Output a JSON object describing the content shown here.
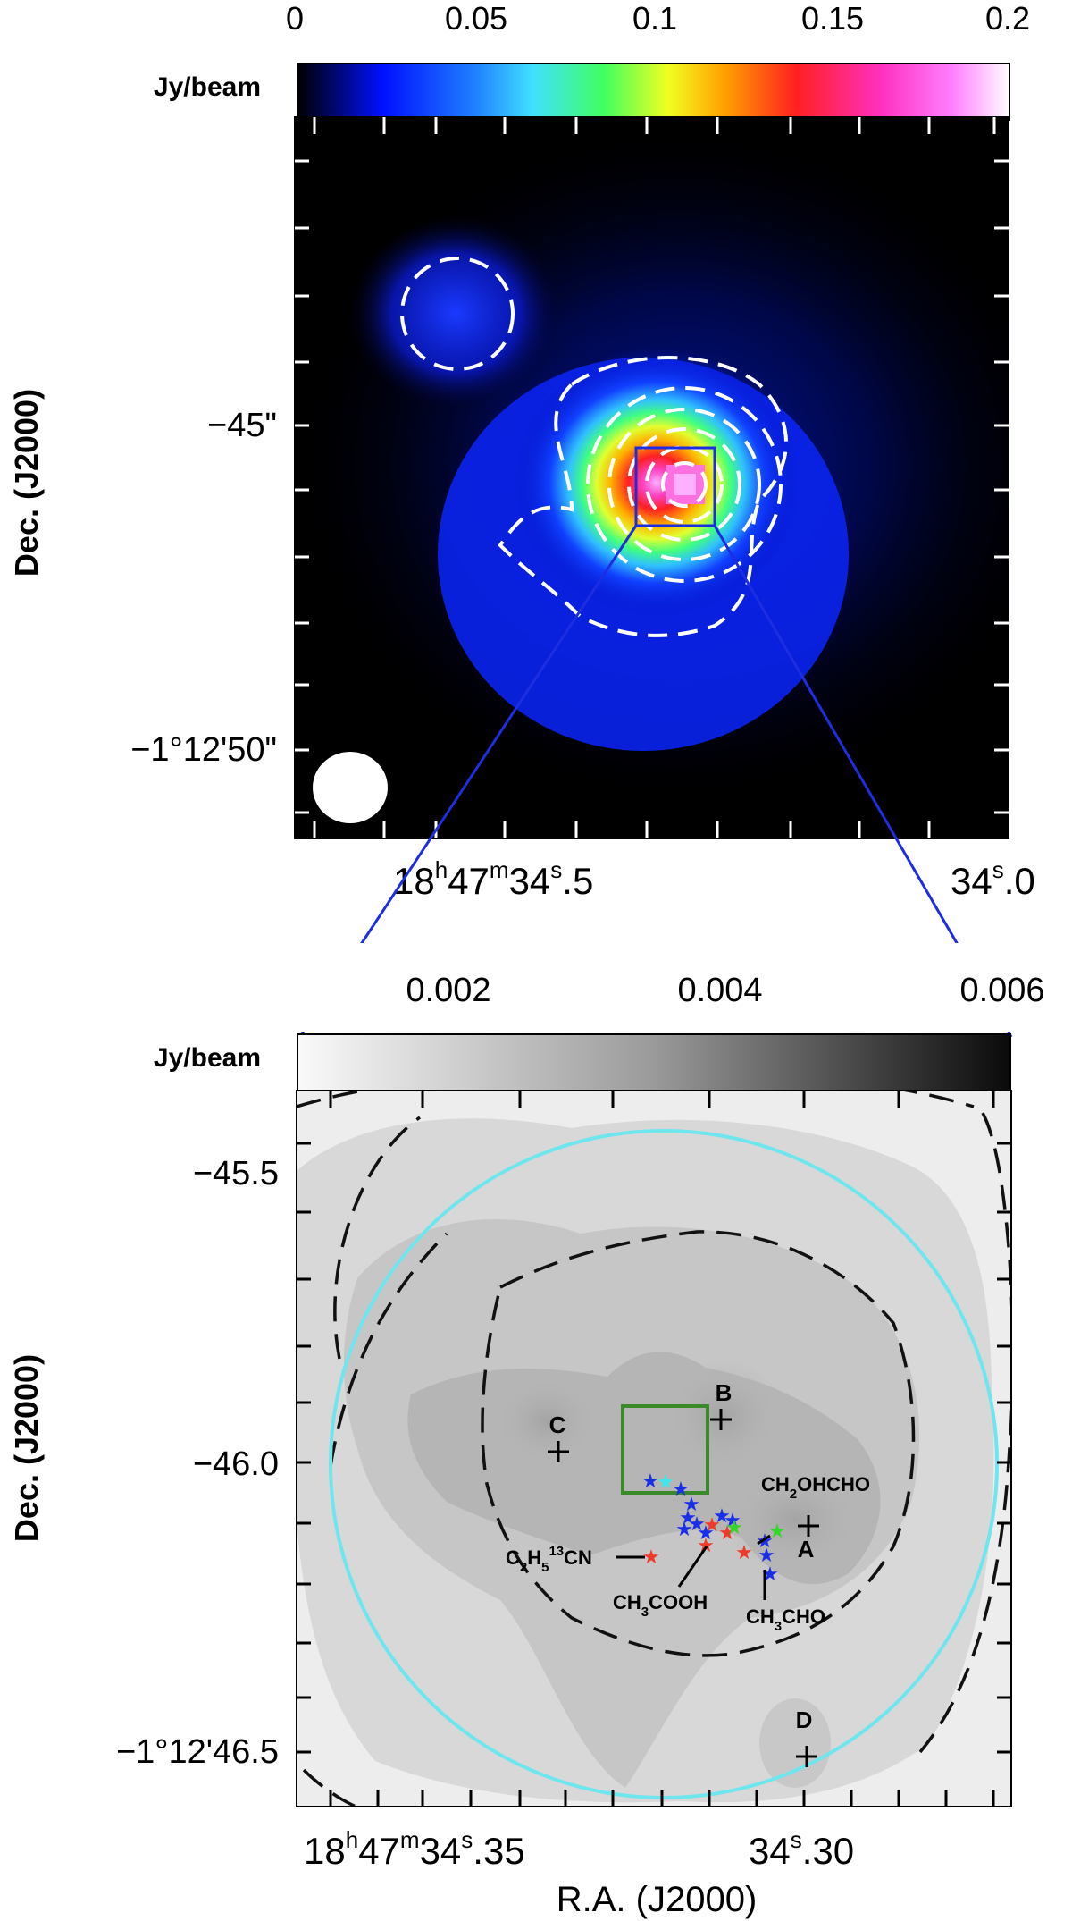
{
  "chart_data": [
    {
      "type": "heatmap",
      "panel": "top",
      "colorbar": {
        "unit": "Jy/beam",
        "ticks": [
          "0",
          "0.05",
          "0.1",
          "0.15",
          "0.2"
        ],
        "range": [
          0,
          0.2
        ],
        "colormap": "rainbow"
      },
      "ylabel": "Dec. (J2000)",
      "y_tick_labels": [
        "−45\"",
        "−1°12'50\""
      ],
      "x_tick_labels": [
        {
          "h": "18",
          "m": "47",
          "s": "34",
          "frac": ".5"
        },
        {
          "s": "34",
          "frac": ".0"
        }
      ],
      "features": [
        "dashed white contours",
        "peak emission source",
        "zoom box",
        "beam ellipse"
      ]
    },
    {
      "type": "heatmap",
      "panel": "bottom",
      "colorbar": {
        "unit": "Jy/beam",
        "ticks": [
          "0.002",
          "0.004",
          "0.006"
        ],
        "range": [
          0,
          0.0065
        ],
        "colormap": "gray"
      },
      "ylabel": "Dec. (J2000)",
      "xlabel": "R.A. (J2000)",
      "y_tick_labels": [
        "−45.5",
        "−46.0",
        "−1°12'46.5"
      ],
      "x_tick_labels": [
        {
          "h": "18",
          "m": "47",
          "s": "34",
          "frac": ".35"
        },
        {
          "s": "34",
          "frac": ".30"
        }
      ],
      "sources": [
        "A",
        "B",
        "C",
        "D"
      ],
      "molecule_labels": {
        "ch2ohcho": {
          "a": "CH",
          "b": "2",
          "c": "OHCHO"
        },
        "c2h5cn": {
          "a": "C",
          "b": "2",
          "c": "H",
          "d": "5",
          "e": "13",
          "f": "CN"
        },
        "ch3cooh": {
          "a": "CH",
          "b": "3",
          "c": "COOH"
        },
        "ch3cho": {
          "a": "CH",
          "b": "3",
          "c": "CHO"
        }
      },
      "star_colors": {
        "blue": "#1a2ee8",
        "red": "#ee3a2a",
        "green": "#33d62a",
        "cyan": "#3fe6f0"
      }
    }
  ],
  "colors": {
    "zoom_line": "#1c2ee0",
    "circle": "#6fe6ee",
    "box_green": "#3a8a2a",
    "box_blue": "#1c2ee0"
  }
}
